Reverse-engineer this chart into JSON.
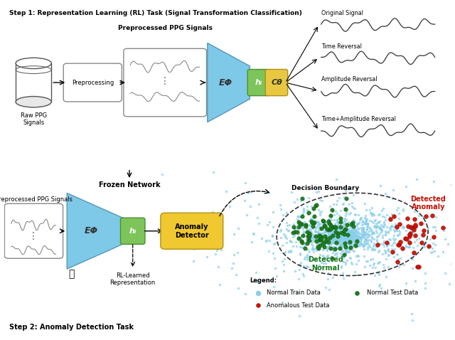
{
  "fig_width": 6.4,
  "fig_height": 4.78,
  "dpi": 100,
  "top_panel": {
    "title": "Step 1: Representation Learning (RL) Task (Signal Transformation Classification)",
    "signal_labels": [
      "Original Signal",
      "Time Reversal",
      "Amplitude Reversal",
      "Time+Amplitude Reversal"
    ],
    "encoder_label": "EΦ",
    "hidden_label": "hᵢ",
    "classifier_label": "Cθ",
    "raw_label": "Raw PPG\nSignals",
    "preproc_label": "Preprocessing",
    "ppg_label": "Preprocessed PPG Signals"
  },
  "bottom_panel": {
    "title": "Step 2: Anomaly Detection Task",
    "frozen_label": "Frozen Network",
    "ppg_label": "Preprocessed PPG Signals",
    "encoder_label": "EΦ",
    "hidden_label": "hᵢ",
    "anomaly_label": "Anomaly\nDetector",
    "rl_label": "RL-Learned\nRepresentation",
    "decision_label": "Decision Boundary",
    "detected_normal_label": "Detected\nNormal",
    "detected_anomaly_label": "Detected\nAnomaly",
    "legend_normal_train": "Normal Train Data",
    "legend_normal_test": "Normal Test Data",
    "legend_anomalous": "Anomalous Test Data"
  },
  "colors": {
    "encoder_blue": "#7EC8E8",
    "hidden_green": "#7DC45A",
    "classifier_yellow": "#E8C840",
    "anomaly_yellow": "#F0C830",
    "scatter_blue": "#87CEEB",
    "scatter_green": "#1A7A1A",
    "scatter_red": "#CC1100",
    "panel_bg": "#FFFFFF"
  }
}
